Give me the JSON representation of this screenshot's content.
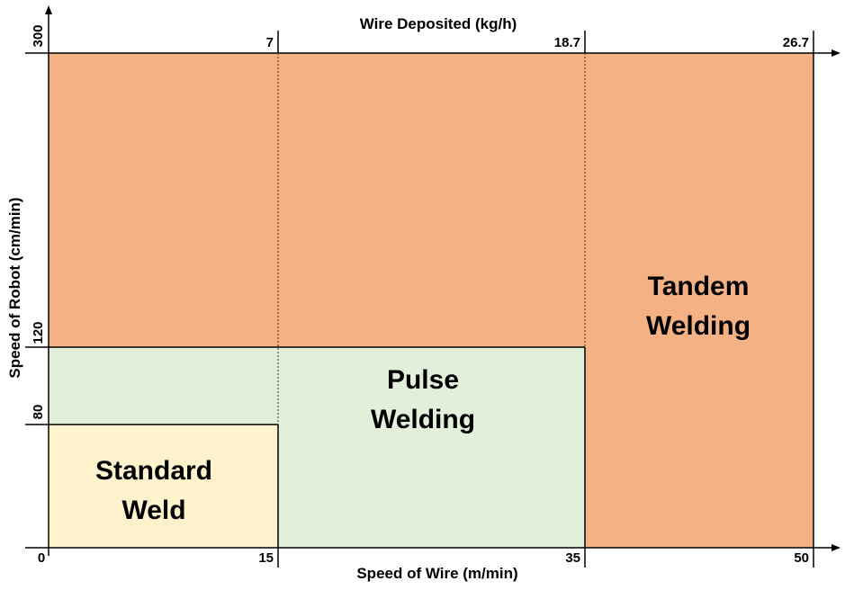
{
  "diagram": {
    "top_axis_title": "Wire Deposited (kg/h)",
    "bottom_axis_title": "Speed of Wire (m/min)",
    "left_axis_title": "Speed of Robot (cm/min)",
    "bottom_ticks": [
      "0",
      "15",
      "35",
      "50"
    ],
    "top_ticks": [
      "7",
      "18.7",
      "26.7"
    ],
    "left_ticks": [
      "80",
      "120",
      "300"
    ],
    "regions": {
      "standard": {
        "line1": "Standard",
        "line2": "Weld",
        "color": "#fff2cc"
      },
      "pulse": {
        "line1": "Pulse",
        "line2": "Welding",
        "color": "#e2efda"
      },
      "tandem": {
        "line1": "Tandem",
        "line2": "Welding",
        "color": "#f4b183"
      }
    },
    "colors": {
      "axis": "#000000",
      "border": "#000000"
    }
  }
}
